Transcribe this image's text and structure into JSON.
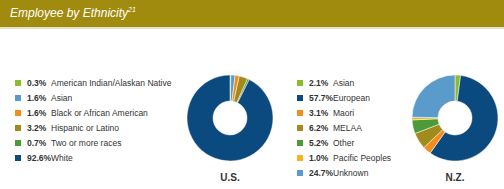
{
  "title": "Employee by Ethnicity",
  "title_footnote": "21",
  "chart_data": [
    {
      "type": "pie",
      "title": "U.S.",
      "categories": [
        "American Indian/Alaskan Native",
        "Asian",
        "Black or African American",
        "Hispanic or Latino",
        "Two or more races",
        "White"
      ],
      "values": [
        0.3,
        1.6,
        1.6,
        3.2,
        0.7,
        92.6
      ],
      "value_labels": [
        "0.3%",
        "1.6%",
        "1.6%",
        "3.2%",
        "0.7%",
        "92.6%"
      ],
      "colors": [
        "#8dbb2f",
        "#5a9bcb",
        "#f28c1c",
        "#a08b1c",
        "#4b9b3a",
        "#0b4a7e"
      ],
      "legend": "left",
      "data_labels": false
    },
    {
      "type": "pie",
      "title": "N.Z.",
      "categories": [
        "Asian",
        "European",
        "Maori",
        "MELAA",
        "Other",
        "Pacific Peoples",
        "Unknown"
      ],
      "values": [
        2.1,
        57.7,
        3.1,
        6.2,
        5.2,
        1.0,
        24.7
      ],
      "value_labels": [
        "2.1%",
        "57.7%",
        "3.1%",
        "6.2%",
        "5.2%",
        "1.0%",
        "24.7%"
      ],
      "colors": [
        "#8dbb2f",
        "#0b4a7e",
        "#f28c1c",
        "#a08b1c",
        "#4b9b3a",
        "#f6b41c",
        "#5a9bcb"
      ],
      "legend": "left",
      "data_labels": false
    }
  ]
}
